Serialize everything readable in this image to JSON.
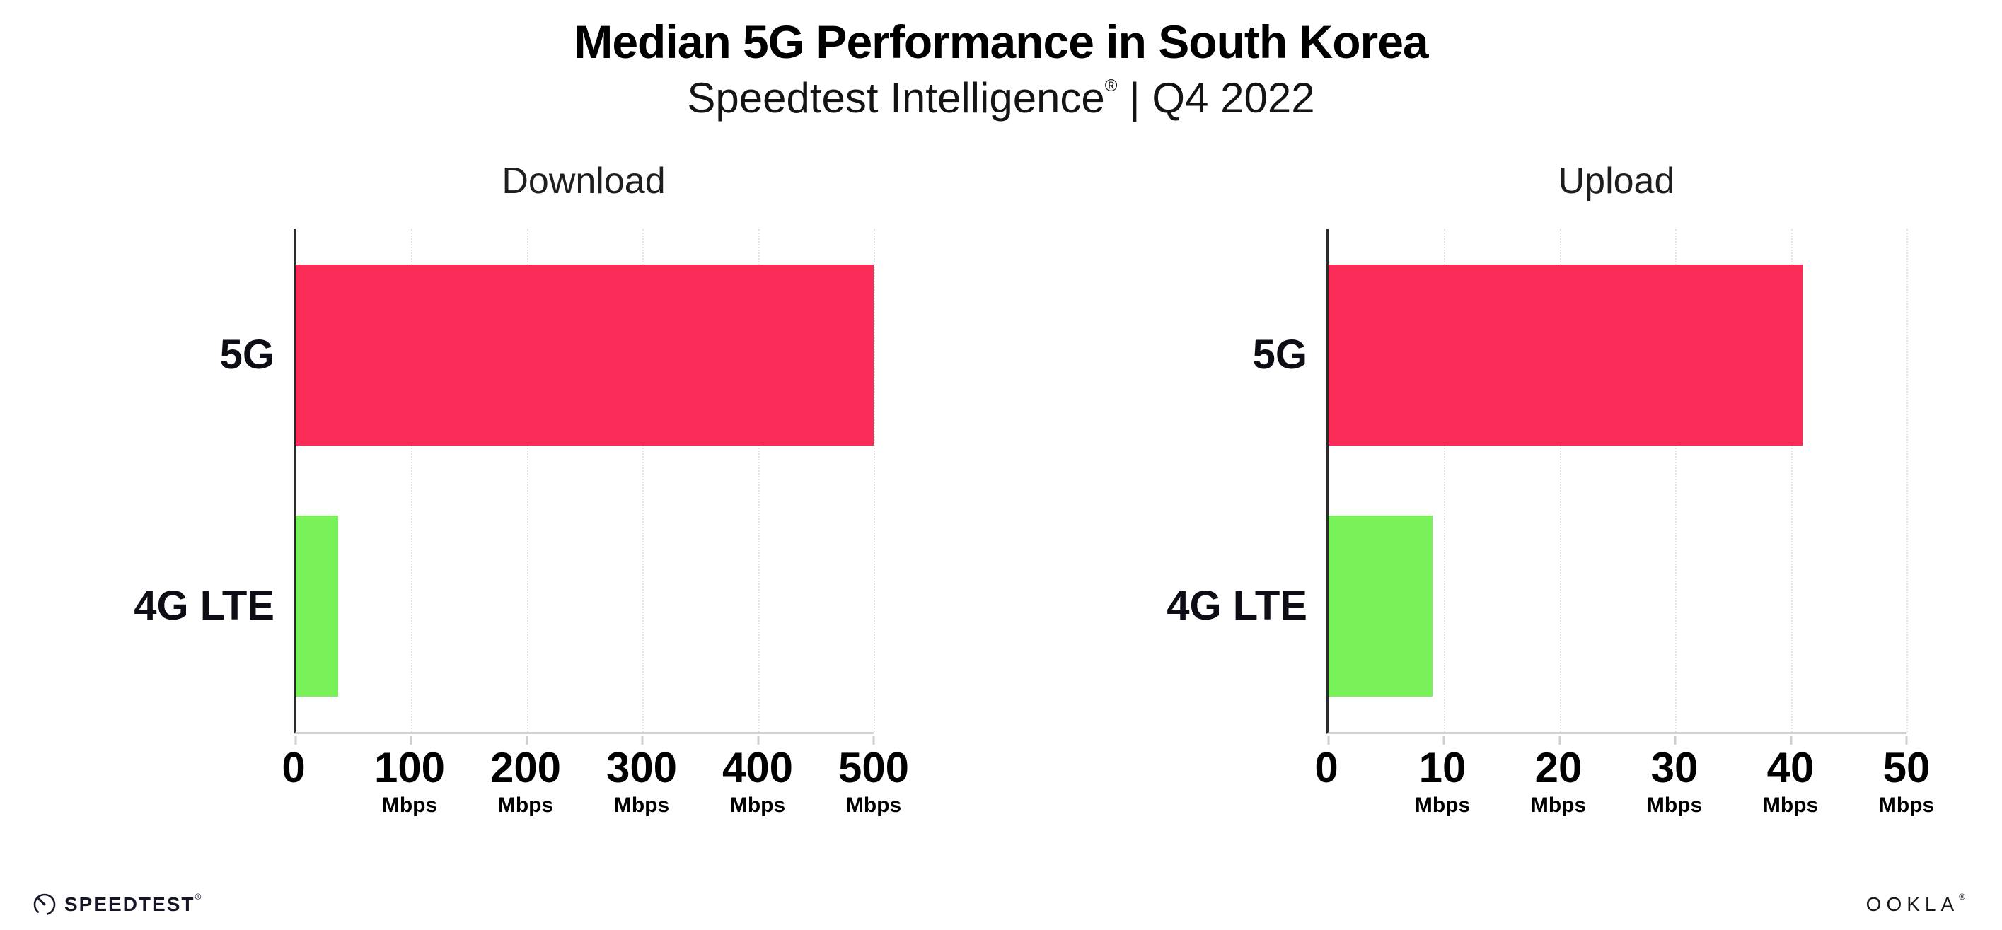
{
  "header": {
    "title": "Median 5G Performance in South Korea",
    "subtitle_brand": "Speedtest Intelligence",
    "subtitle_reg": "®",
    "subtitle_rest": " | Q4 2022"
  },
  "colors": {
    "bar_5g": "#FA2C57",
    "bar_4g_lte": "#79F259",
    "axis_spine": "#2b2b2b",
    "baseline": "#cfcfcf",
    "gridline": "#e2e2e2",
    "brand_dark": "#141526"
  },
  "chart_data": [
    {
      "type": "bar",
      "orientation": "horizontal",
      "title": "Download",
      "categories": [
        "5G",
        "4G LTE"
      ],
      "values": [
        500,
        37
      ],
      "unit": "Mbps",
      "xlim": [
        0,
        500
      ],
      "xticks": [
        0,
        100,
        200,
        300,
        400,
        500
      ],
      "bar_colors": [
        "#FA2C57",
        "#79F259"
      ],
      "grid": "dotted-vertical",
      "legend": "none"
    },
    {
      "type": "bar",
      "orientation": "horizontal",
      "title": "Upload",
      "categories": [
        "5G",
        "4G LTE"
      ],
      "values": [
        41,
        9
      ],
      "unit": "Mbps",
      "xlim": [
        0,
        50
      ],
      "xticks": [
        0,
        10,
        20,
        30,
        40,
        50
      ],
      "bar_colors": [
        "#FA2C57",
        "#79F259"
      ],
      "grid": "dotted-vertical",
      "legend": "none"
    }
  ],
  "footer": {
    "speedtest_label": "SPEEDTEST",
    "speedtest_mark": "®",
    "ookla_label": "OOKLA",
    "ookla_mark": "®"
  }
}
